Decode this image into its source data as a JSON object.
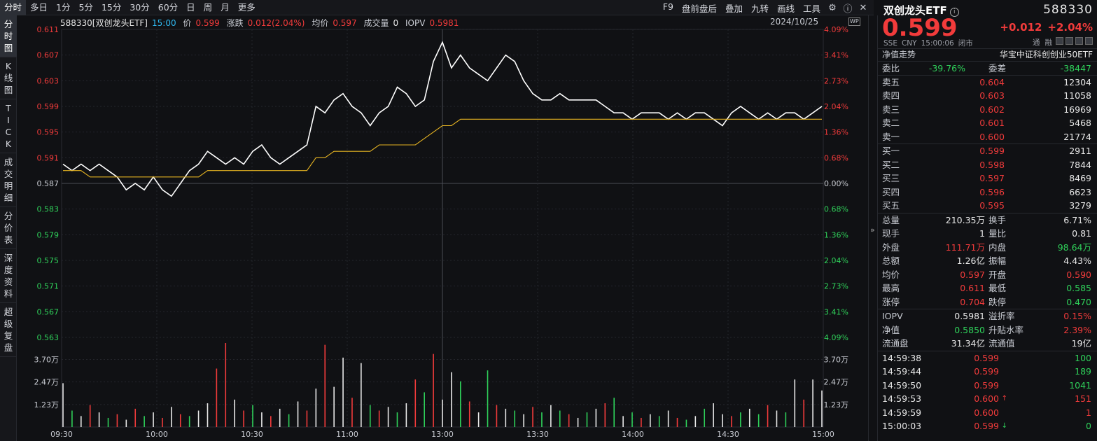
{
  "toolbar": {
    "timeframes": [
      "分时",
      "多日",
      "1分",
      "5分",
      "15分",
      "30分",
      "60分",
      "日",
      "周",
      "月",
      "更多"
    ],
    "active_timeframe": "分时",
    "right_items": [
      "F9",
      "盘前盘后",
      "叠加",
      "九转",
      "画线",
      "工具"
    ]
  },
  "left_tabs": [
    {
      "label": "分时图",
      "chars": [
        "分",
        "时",
        "图"
      ],
      "active": true
    },
    {
      "label": "K线图",
      "chars": [
        "K",
        "线",
        "图"
      ],
      "active": false
    },
    {
      "label": "TICK",
      "chars": [
        "T",
        "I",
        "C",
        "K"
      ],
      "active": false
    },
    {
      "label": "成交明细",
      "chars": [
        "成",
        "交",
        "明",
        "细"
      ],
      "active": false
    },
    {
      "label": "分价表",
      "chars": [
        "分",
        "价",
        "表"
      ],
      "active": false
    },
    {
      "label": "深度资料",
      "chars": [
        "深",
        "度",
        "资",
        "料"
      ],
      "active": false
    },
    {
      "label": "超级复盘",
      "chars": [
        "超",
        "级",
        "复",
        "盘"
      ],
      "active": false
    }
  ],
  "chart_info": {
    "symbol": "588330[双创龙头ETF]",
    "time": "15:00",
    "price_label": "价",
    "price": "0.599",
    "change_label": "涨跌",
    "change": "0.012(2.04%)",
    "avg_label": "均价",
    "avg": "0.597",
    "volume_label": "成交量",
    "volume": "0",
    "iopv_label": "IOPV",
    "iopv": "0.5981",
    "date": "2024/10/25",
    "badge": "WP"
  },
  "chart_data": {
    "type": "line",
    "title": "",
    "y_ticks_left": [
      "0.611",
      "0.607",
      "0.603",
      "0.599",
      "0.595",
      "0.591",
      "0.587",
      "0.583",
      "0.579",
      "0.575",
      "0.571",
      "0.567",
      "0.563"
    ],
    "y_ticks_right": [
      "4.09%",
      "3.41%",
      "2.73%",
      "2.04%",
      "1.36%",
      "0.68%",
      "0.00%",
      "0.68%",
      "1.36%",
      "2.04%",
      "2.73%",
      "3.41%",
      "4.09%"
    ],
    "ylim": [
      0.563,
      0.611
    ],
    "prev_close": 0.587,
    "x_ticks": [
      "09:30",
      "10:00",
      "10:30",
      "11:00",
      "13:00",
      "13:30",
      "14:00",
      "14:30",
      "15:00"
    ],
    "vol_ticks": [
      "3.70万",
      "2.47万",
      "1.23万"
    ],
    "vol_max": 4.6,
    "series": [
      {
        "values": [
          0.59,
          0.589,
          0.59,
          0.589,
          0.59,
          0.589,
          0.588,
          0.586,
          0.587,
          0.586,
          0.588,
          0.586,
          0.585,
          0.587,
          0.589,
          0.59,
          0.592,
          0.591,
          0.59,
          0.591,
          0.59,
          0.592,
          0.593,
          0.591,
          0.59,
          0.591,
          0.592,
          0.593,
          0.599,
          0.598,
          0.6,
          0.601,
          0.599,
          0.598,
          0.596,
          0.598,
          0.599,
          0.602,
          0.601,
          0.599,
          0.6,
          0.606,
          0.609,
          0.605,
          0.607,
          0.605,
          0.604,
          0.603,
          0.605,
          0.607,
          0.606,
          0.603,
          0.601,
          0.6,
          0.6,
          0.601,
          0.6,
          0.6,
          0.6,
          0.6,
          0.599,
          0.598,
          0.598,
          0.597,
          0.598,
          0.598,
          0.598,
          0.597,
          0.598,
          0.597,
          0.598,
          0.598,
          0.597,
          0.596,
          0.598,
          0.599,
          0.598,
          0.597,
          0.598,
          0.597,
          0.598,
          0.598,
          0.597,
          0.598,
          0.599
        ]
      },
      {
        "values": [
          0.589,
          0.589,
          0.589,
          0.588,
          0.588,
          0.588,
          0.588,
          0.588,
          0.588,
          0.588,
          0.588,
          0.588,
          0.588,
          0.588,
          0.588,
          0.588,
          0.589,
          0.589,
          0.589,
          0.589,
          0.589,
          0.589,
          0.589,
          0.589,
          0.589,
          0.589,
          0.589,
          0.589,
          0.591,
          0.591,
          0.592,
          0.592,
          0.592,
          0.592,
          0.592,
          0.593,
          0.593,
          0.593,
          0.593,
          0.593,
          0.594,
          0.595,
          0.596,
          0.596,
          0.597,
          0.597,
          0.597,
          0.597,
          0.597,
          0.597,
          0.597,
          0.597,
          0.597,
          0.597,
          0.597,
          0.597,
          0.597,
          0.597,
          0.597,
          0.597,
          0.597,
          0.597,
          0.597,
          0.597,
          0.597,
          0.597,
          0.597,
          0.597,
          0.597,
          0.597,
          0.597,
          0.597,
          0.597,
          0.597,
          0.597,
          0.597,
          0.597,
          0.597,
          0.597,
          0.597,
          0.597,
          0.597,
          0.597,
          0.597,
          0.597
        ]
      }
    ],
    "volumes": [
      2.4,
      0.9,
      0.6,
      1.2,
      0.8,
      0.5,
      0.7,
      0.4,
      1.0,
      0.6,
      0.8,
      0.5,
      1.1,
      0.7,
      0.6,
      0.9,
      1.3,
      3.2,
      4.6,
      1.5,
      0.9,
      1.2,
      0.8,
      0.6,
      1.0,
      0.7,
      1.4,
      0.9,
      2.1,
      4.5,
      2.2,
      3.8,
      1.6,
      3.5,
      1.2,
      0.9,
      1.1,
      0.8,
      1.3,
      2.6,
      1.9,
      4.0,
      1.5,
      3.0,
      2.5,
      1.4,
      0.8,
      3.1,
      1.2,
      1.0,
      0.9,
      0.7,
      1.1,
      0.8,
      1.2,
      0.9,
      0.7,
      0.5,
      0.8,
      1.0,
      1.3,
      1.6,
      0.6,
      0.8,
      0.5,
      0.7,
      0.6,
      0.9,
      0.5,
      0.4,
      0.6,
      1.0,
      1.3,
      0.7,
      0.6,
      0.8,
      1.0,
      0.7,
      1.2,
      0.9,
      0.8,
      2.6,
      1.5,
      2.6,
      2.0
    ],
    "volume_colors": [
      "w",
      "g",
      "w",
      "r",
      "w",
      "g",
      "r",
      "w",
      "r",
      "g",
      "w",
      "r",
      "w",
      "r",
      "g",
      "w",
      "w",
      "r",
      "r",
      "w",
      "r",
      "g",
      "w",
      "r",
      "w",
      "g",
      "w",
      "r",
      "w",
      "r",
      "w",
      "w",
      "r",
      "w",
      "g",
      "r",
      "w",
      "g",
      "w",
      "r",
      "g",
      "r",
      "w",
      "w",
      "g",
      "r",
      "w",
      "g",
      "r",
      "w",
      "g",
      "w",
      "r",
      "g",
      "w",
      "g",
      "r",
      "w",
      "g",
      "w",
      "r",
      "g",
      "w",
      "g",
      "r",
      "w",
      "g",
      "w",
      "r",
      "g",
      "w",
      "g",
      "w",
      "w",
      "r",
      "g",
      "w",
      "g",
      "r",
      "w",
      "g",
      "w",
      "r",
      "w",
      "w"
    ]
  },
  "panel": {
    "name": "双创龙头ETF",
    "code": "588330",
    "price": "0.599",
    "change": "+0.012",
    "change_pct": "+2.04%",
    "meta": [
      "SSE",
      "CNY",
      "15:00:06",
      "闭市"
    ],
    "tags": [
      "通",
      "融"
    ],
    "nav_label": "净值走势",
    "index_name": "华宝中证科创创业50ETF",
    "weibi": {
      "l1": "委比",
      "v1": "-39.76%",
      "l2": "委差",
      "v2": "-38447"
    },
    "asks": [
      {
        "label": "卖五",
        "price": "0.604",
        "vol": "12304"
      },
      {
        "label": "卖四",
        "price": "0.603",
        "vol": "11058"
      },
      {
        "label": "卖三",
        "price": "0.602",
        "vol": "16969"
      },
      {
        "label": "卖二",
        "price": "0.601",
        "vol": "5468"
      },
      {
        "label": "卖一",
        "price": "0.600",
        "vol": "21774"
      }
    ],
    "bids": [
      {
        "label": "买一",
        "price": "0.599",
        "vol": "2911"
      },
      {
        "label": "买二",
        "price": "0.598",
        "vol": "7844"
      },
      {
        "label": "买三",
        "price": "0.597",
        "vol": "8469"
      },
      {
        "label": "买四",
        "price": "0.596",
        "vol": "6623"
      },
      {
        "label": "买五",
        "price": "0.595",
        "vol": "3279"
      }
    ],
    "stats": [
      {
        "l1": "总量",
        "v1": "210.35万",
        "c1": "white",
        "l2": "换手",
        "v2": "6.71%",
        "c2": "white"
      },
      {
        "l1": "现手",
        "v1": "1",
        "c1": "white",
        "l2": "量比",
        "v2": "0.81",
        "c2": "white"
      },
      {
        "l1": "外盘",
        "v1": "111.71万",
        "c1": "red",
        "l2": "内盘",
        "v2": "98.64万",
        "c2": "green"
      },
      {
        "l1": "总额",
        "v1": "1.26亿",
        "c1": "white",
        "l2": "振幅",
        "v2": "4.43%",
        "c2": "white"
      },
      {
        "l1": "均价",
        "v1": "0.597",
        "c1": "red",
        "l2": "开盘",
        "v2": "0.590",
        "c2": "red"
      },
      {
        "l1": "最高",
        "v1": "0.611",
        "c1": "red",
        "l2": "最低",
        "v2": "0.585",
        "c2": "green"
      },
      {
        "l1": "涨停",
        "v1": "0.704",
        "c1": "red",
        "l2": "跌停",
        "v2": "0.470",
        "c2": "green"
      }
    ],
    "stats2": [
      {
        "l1": "IOPV",
        "v1": "0.5981",
        "c1": "white",
        "l2": "溢折率",
        "v2": "0.15%",
        "c2": "red"
      },
      {
        "l1": "净值",
        "v1": "0.5850",
        "c1": "green",
        "l2": "升贴水率",
        "v2": "2.39%",
        "c2": "red"
      },
      {
        "l1": "流通盘",
        "v1": "31.34亿",
        "c1": "white",
        "l2": "流通值",
        "v2": "19亿",
        "c2": "white"
      }
    ],
    "ticks": [
      {
        "time": "14:59:38",
        "price": "0.599",
        "vol": "100",
        "dir": "",
        "vc": "green"
      },
      {
        "time": "14:59:44",
        "price": "0.599",
        "vol": "189",
        "dir": "",
        "vc": "green"
      },
      {
        "time": "14:59:50",
        "price": "0.599",
        "vol": "1041",
        "dir": "",
        "vc": "green"
      },
      {
        "time": "14:59:53",
        "price": "0.600",
        "vol": "151",
        "dir": "up",
        "vc": "red"
      },
      {
        "time": "14:59:59",
        "price": "0.600",
        "vol": "1",
        "dir": "",
        "vc": "red"
      },
      {
        "time": "15:00:03",
        "price": "0.599",
        "vol": "0",
        "dir": "down",
        "vc": "green"
      }
    ]
  },
  "colors": {
    "up": "#f23b3b",
    "down": "#2fd15a",
    "price_line": "#ffffff",
    "avg_line": "#e6b422",
    "bg": "#101114"
  }
}
